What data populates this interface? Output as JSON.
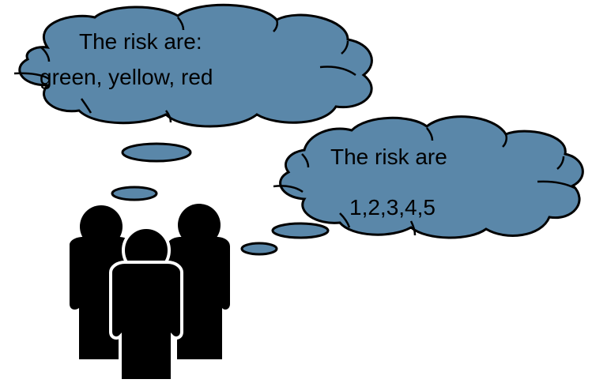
{
  "left_cloud": {
    "line1": "The risk are:",
    "line2": "green, yellow, red"
  },
  "right_cloud": {
    "line1": "The risk are",
    "line2": "1,2,3,4,5"
  },
  "colors": {
    "cloud_fill": "#5a87a9",
    "cloud_stroke": "#000000",
    "figure_fill": "#000000",
    "background": "#ffffff"
  }
}
